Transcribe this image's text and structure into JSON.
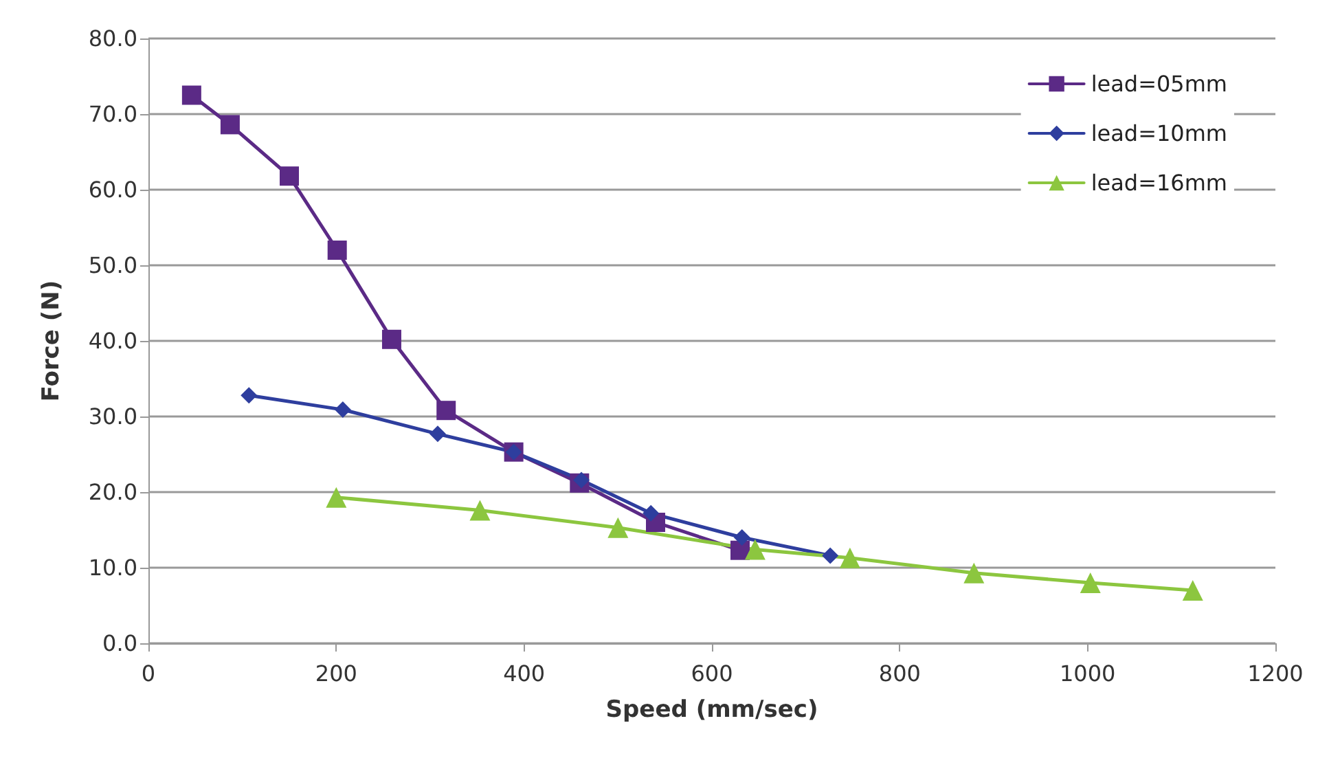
{
  "chart_data": {
    "type": "line",
    "xlabel": "Speed (mm/sec)",
    "ylabel": "Force (N)",
    "xlim": [
      0,
      1200
    ],
    "xticks": [
      0,
      200,
      400,
      600,
      800,
      1000,
      1200
    ],
    "ylim": [
      0,
      80
    ],
    "yticks": [
      {
        "value": 0,
        "label": "0.0"
      },
      {
        "value": 10,
        "label": "10.0"
      },
      {
        "value": 20,
        "label": "20.0"
      },
      {
        "value": 30,
        "label": "30.0"
      },
      {
        "value": 40,
        "label": "40.0"
      },
      {
        "value": 50,
        "label": "50.0"
      },
      {
        "value": 60,
        "label": "60.0"
      },
      {
        "value": 70,
        "label": "70.0"
      },
      {
        "value": 80,
        "label": "80.0"
      }
    ],
    "grid": "y",
    "legend": "top right",
    "line_style": "solid",
    "series": [
      {
        "name": "lead=05mm",
        "color": "#5b2a86",
        "marker": "square",
        "x": [
          46,
          87,
          150,
          201,
          259,
          317,
          389,
          459,
          540,
          630
        ],
        "values": [
          72.5,
          68.6,
          61.8,
          52.0,
          40.2,
          30.8,
          25.3,
          21.2,
          16.0,
          12.3
        ]
      },
      {
        "name": "lead=10mm",
        "color": "#2e3e9e",
        "marker": "diamond",
        "x": [
          107,
          207,
          308,
          389,
          461,
          535,
          632,
          726
        ],
        "values": [
          32.8,
          30.9,
          27.7,
          25.3,
          21.6,
          17.2,
          14.0,
          11.6
        ]
      },
      {
        "name": "lead=16mm",
        "color": "#8cc63f",
        "marker": "triangle",
        "x": [
          200,
          353,
          500,
          646,
          747,
          879,
          1003,
          1112
        ],
        "values": [
          19.3,
          17.6,
          15.3,
          12.4,
          11.3,
          9.3,
          8.0,
          7.0
        ]
      }
    ]
  }
}
